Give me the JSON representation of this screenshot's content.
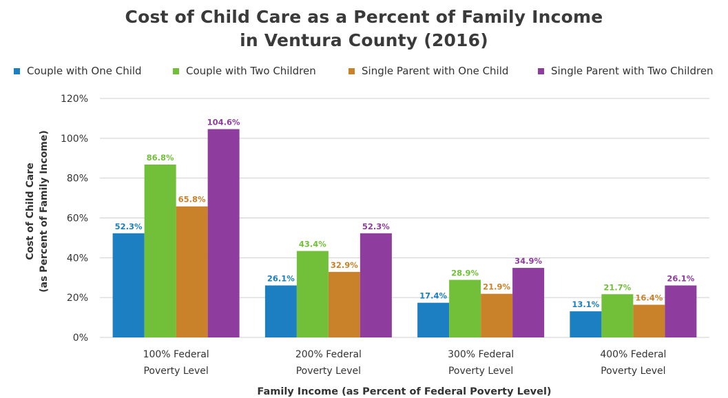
{
  "chart_data": {
    "type": "bar",
    "title_line1": "Cost of Child Care as a Percent of Family Income",
    "title_line2": "in Ventura County (2016)",
    "xlabel": "Family Income (as Percent of Federal Poverty Level)",
    "ylabel_line1": "Cost of Child Care",
    "ylabel_line2": "(as Percent of Family Income)",
    "categories": [
      [
        "100% Federal",
        "Poverty Level"
      ],
      [
        "200% Federal",
        "Poverty Level"
      ],
      [
        "300% Federal",
        "Poverty Level"
      ],
      [
        "400% Federal",
        "Poverty Level"
      ]
    ],
    "ylim": [
      0,
      120
    ],
    "yticks": [
      {
        "value": 0,
        "label": "0%"
      },
      {
        "value": 20,
        "label": "20%"
      },
      {
        "value": 40,
        "label": "40%"
      },
      {
        "value": 60,
        "label": "60%"
      },
      {
        "value": 80,
        "label": "80%"
      },
      {
        "value": 100,
        "label": "100%"
      },
      {
        "value": 120,
        "label": "120%"
      }
    ],
    "grid": true,
    "legend_position": "top",
    "series": [
      {
        "name": "Couple with One Child",
        "color": "#1b7fc1",
        "label_color": "#1b7fc1",
        "values": [
          52.3,
          26.1,
          17.4,
          13.1
        ],
        "labels": [
          "52.3%",
          "26.1%",
          "17.4%",
          "13.1%"
        ]
      },
      {
        "name": "Couple with Two Children",
        "color": "#72c03a",
        "label_color": "#72c03a",
        "values": [
          86.8,
          43.4,
          28.9,
          21.7
        ],
        "labels": [
          "86.8%",
          "43.4%",
          "28.9%",
          "21.7%"
        ]
      },
      {
        "name": "Single Parent with One Child",
        "color": "#c9822a",
        "label_color": "#c9822a",
        "values": [
          65.8,
          32.9,
          21.9,
          16.4
        ],
        "labels": [
          "65.8%",
          "32.9%",
          "21.9%",
          "16.4%"
        ]
      },
      {
        "name": "Single Parent with Two Children",
        "color": "#8f3c9f",
        "label_color": "#8f3c9f",
        "values": [
          104.6,
          52.3,
          34.9,
          26.1
        ],
        "labels": [
          "104.6%",
          "52.3%",
          "34.9%",
          "26.1%"
        ]
      }
    ]
  }
}
